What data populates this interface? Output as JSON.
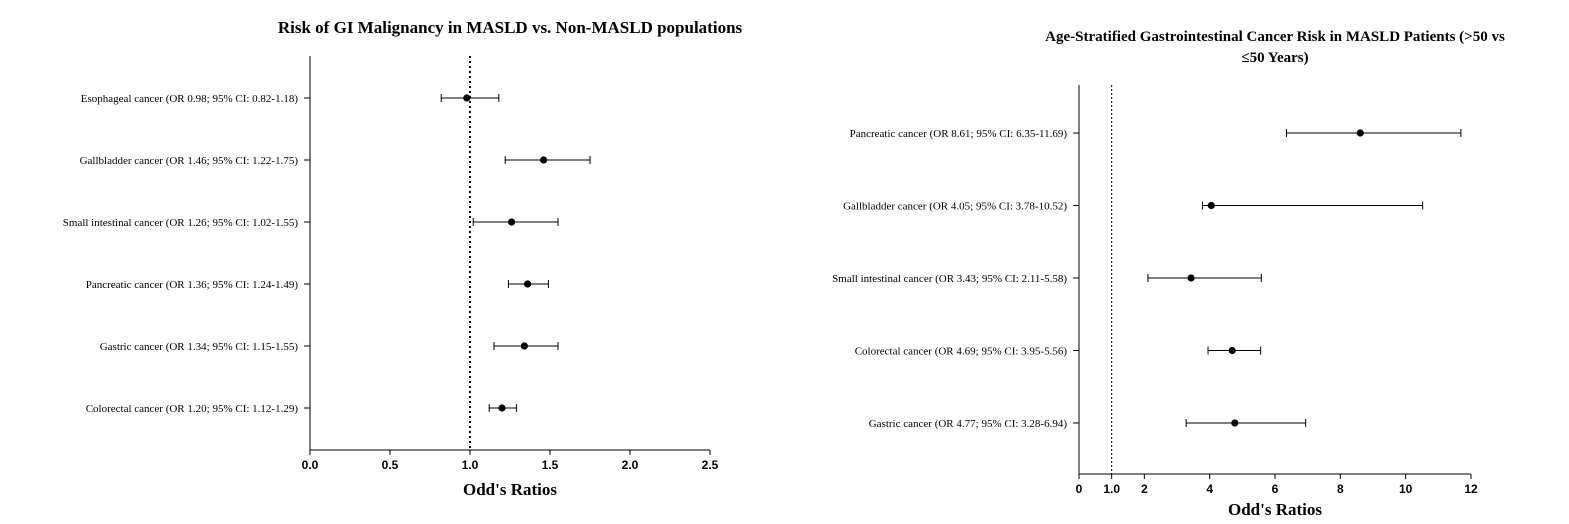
{
  "chart_data": [
    {
      "type": "scatter",
      "subtype": "forest-plot",
      "title": "Risk of GI Malignancy in MASLD vs. Non-MASLD populations",
      "xlabel": "Odd's Ratios",
      "xlim": [
        0,
        2.5
      ],
      "xticks": [
        0,
        0.5,
        1.0,
        1.5,
        2.0,
        2.5
      ],
      "xtick_labels": [
        "0.0",
        "0.5",
        "1.0",
        "1.5",
        "2.0",
        "2.5"
      ],
      "reference_line": 1.0,
      "rows": [
        {
          "label": "Esophageal cancer (OR 0.98; 95% CI: 0.82-1.18)",
          "or": 0.98,
          "lo": 0.82,
          "hi": 1.18
        },
        {
          "label": "Gallbladder cancer (OR 1.46; 95% CI: 1.22-1.75)",
          "or": 1.46,
          "lo": 1.22,
          "hi": 1.75
        },
        {
          "label": "Small intestinal cancer (OR 1.26; 95% CI: 1.02-1.55)",
          "or": 1.26,
          "lo": 1.02,
          "hi": 1.55
        },
        {
          "label": "Pancreatic cancer (OR 1.36; 95% CI: 1.24-1.49)",
          "or": 1.36,
          "lo": 1.24,
          "hi": 1.49
        },
        {
          "label": "Gastric cancer (OR 1.34; 95% CI: 1.15-1.55)",
          "or": 1.34,
          "lo": 1.15,
          "hi": 1.55
        },
        {
          "label": "Colorectal cancer (OR 1.20; 95% CI: 1.12-1.29)",
          "or": 1.2,
          "lo": 1.12,
          "hi": 1.29
        }
      ]
    },
    {
      "type": "scatter",
      "subtype": "forest-plot",
      "title_lines": [
        "Age-Stratified Gastrointestinal Cancer Risk in MASLD Patients (>50 vs",
        "≤50 Years)"
      ],
      "xlabel": "Odd's Ratios",
      "xlim": [
        0,
        12
      ],
      "xticks": [
        0,
        1,
        2,
        4,
        6,
        8,
        10,
        12
      ],
      "xtick_labels": [
        "0",
        "1.0",
        "2",
        "4",
        "6",
        "8",
        "10",
        "12"
      ],
      "reference_line": 1.0,
      "rows": [
        {
          "label": "Pancreatic cancer (OR 8.61; 95% CI: 6.35-11.69)",
          "or": 8.61,
          "lo": 6.35,
          "hi": 11.69
        },
        {
          "label": "Gallbladder cancer (OR 4.05; 95% CI: 3.78-10.52)",
          "or": 4.05,
          "lo": 3.78,
          "hi": 10.52
        },
        {
          "label": "Small intestinal cancer (OR 3.43; 95% CI: 2.11-5.58)",
          "or": 3.43,
          "lo": 2.11,
          "hi": 5.58
        },
        {
          "label": "Colorectal cancer (OR 4.69; 95% CI: 3.95-5.56)",
          "or": 4.69,
          "lo": 3.95,
          "hi": 5.56
        },
        {
          "label": "Gastric cancer (OR 4.77; 95% CI: 3.28-6.94)",
          "or": 4.77,
          "lo": 3.28,
          "hi": 6.94
        }
      ]
    }
  ]
}
